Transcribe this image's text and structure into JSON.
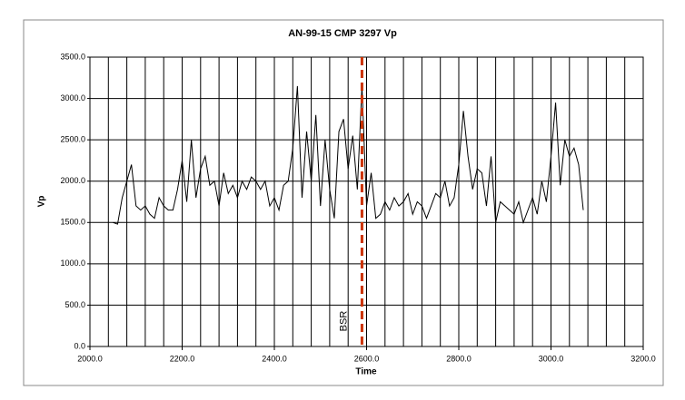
{
  "chart_data": {
    "type": "line",
    "title": "AN-99-15 CMP 3297 Vp",
    "x_label": "Time",
    "y_label": "Vp",
    "xlim": [
      2000,
      3200
    ],
    "ylim": [
      0,
      3500
    ],
    "xticks": [
      {
        "value": 2000,
        "label": "2000.0"
      },
      {
        "value": 2200,
        "label": "2200.0"
      },
      {
        "value": 2400,
        "label": "2400.0"
      },
      {
        "value": 2600,
        "label": "2600.0"
      },
      {
        "value": 2800,
        "label": "2800.0"
      },
      {
        "value": 3000,
        "label": "3000.0"
      },
      {
        "value": 3200,
        "label": "3200.0"
      }
    ],
    "yticks": [
      {
        "value": 0,
        "label": "0.0"
      },
      {
        "value": 500,
        "label": "500.0"
      },
      {
        "value": 1000,
        "label": "1000.0"
      },
      {
        "value": 1500,
        "label": "1500.0"
      },
      {
        "value": 2000,
        "label": "2000.0"
      },
      {
        "value": 2500,
        "label": "2500.0"
      },
      {
        "value": 3000,
        "label": "3000.0"
      },
      {
        "value": 3500,
        "label": "3500.0"
      }
    ],
    "xminorticks": [
      2040,
      2080,
      2120,
      2160,
      2200,
      2240,
      2280,
      2320,
      2360,
      2400,
      2440,
      2480,
      2520,
      2560,
      2600,
      2640,
      2680,
      2720,
      2760,
      2800,
      2840,
      2880,
      2920,
      2960,
      3000,
      3040,
      3080,
      3120,
      3160
    ],
    "grid": true,
    "x": [
      2050,
      2060,
      2070,
      2080,
      2090,
      2100,
      2110,
      2120,
      2130,
      2140,
      2150,
      2160,
      2170,
      2180,
      2190,
      2200,
      2210,
      2220,
      2230,
      2240,
      2250,
      2260,
      2270,
      2280,
      2290,
      2300,
      2310,
      2320,
      2330,
      2340,
      2350,
      2360,
      2370,
      2380,
      2390,
      2400,
      2410,
      2420,
      2430,
      2440,
      2450,
      2460,
      2470,
      2480,
      2490,
      2500,
      2510,
      2520,
      2530,
      2540,
      2550,
      2560,
      2570,
      2580,
      2590,
      2600,
      2610,
      2620,
      2630,
      2640,
      2650,
      2660,
      2670,
      2680,
      2690,
      2700,
      2710,
      2720,
      2730,
      2740,
      2750,
      2760,
      2770,
      2780,
      2790,
      2800,
      2810,
      2820,
      2830,
      2840,
      2850,
      2860,
      2870,
      2880,
      2890,
      2900,
      2910,
      2920,
      2930,
      2940,
      2950,
      2960,
      2970,
      2980,
      2990,
      3000,
      3010,
      3020,
      3030,
      3040,
      3050,
      3060,
      3070
    ],
    "series": [
      {
        "name": "Vp",
        "color": "#000000",
        "values": [
          1500,
          1480,
          1800,
          2000,
          2200,
          1700,
          1650,
          1700,
          1600,
          1550,
          1800,
          1700,
          1650,
          1650,
          1900,
          2250,
          1750,
          2500,
          1800,
          2150,
          2300,
          1950,
          2000,
          1700,
          2100,
          1850,
          1950,
          1800,
          2000,
          1900,
          2050,
          2000,
          1900,
          2000,
          1700,
          1800,
          1650,
          1950,
          2000,
          2400,
          3150,
          1800,
          2600,
          2000,
          2800,
          1700,
          2500,
          1900,
          1550,
          2600,
          2750,
          2150,
          2550,
          1900,
          3150,
          1700,
          2100,
          1550,
          1600,
          1750,
          1650,
          1800,
          1700,
          1750,
          1850,
          1600,
          1750,
          1700,
          1550,
          1700,
          1850,
          1800,
          2000,
          1700,
          1800,
          2200,
          2850,
          2300,
          1900,
          2150,
          2100,
          1700,
          2300,
          1500,
          1750,
          1700,
          1650,
          1600,
          1750,
          1500,
          1650,
          1800,
          1600,
          2000,
          1750,
          2300,
          2950,
          1950,
          2500,
          2300,
          2400,
          2200,
          1650
        ]
      }
    ],
    "annotations": [
      {
        "x": 2590,
        "label": "BSR",
        "color": "#cc3300"
      }
    ]
  }
}
